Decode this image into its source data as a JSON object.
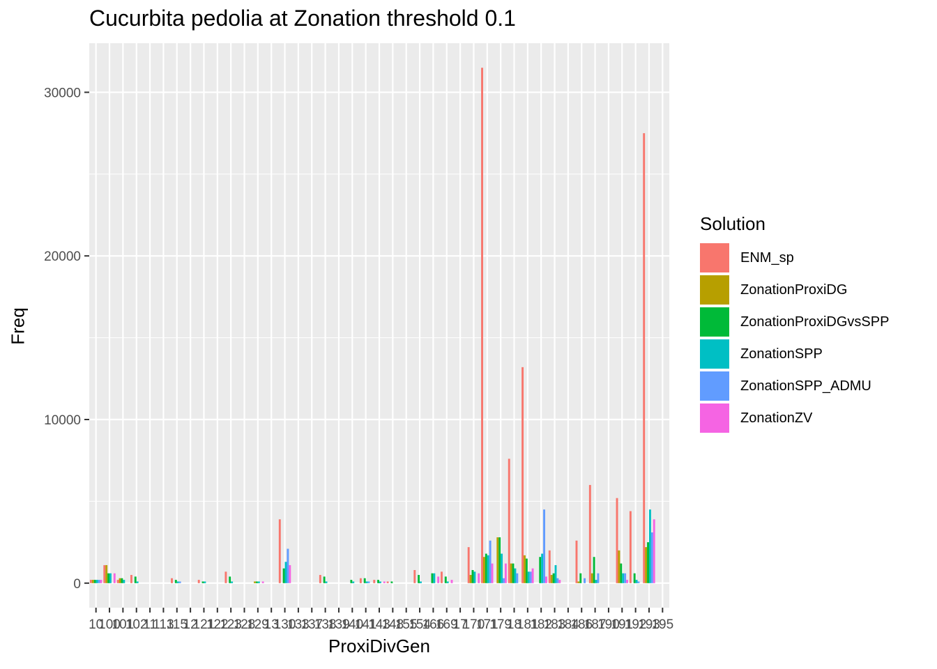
{
  "chart_data": {
    "type": "bar",
    "title": "Cucurbita pedolia at Zonation threshold 0.1",
    "xlabel": "ProxiDivGen",
    "ylabel": "Freq",
    "ylim": [
      -1500,
      33000
    ],
    "yticks": [
      0,
      10000,
      20000,
      30000
    ],
    "grid": true,
    "legend_position": "right",
    "legend_title": "Solution",
    "categories": [
      "10",
      "100",
      "101",
      "102",
      "11",
      "113",
      "115",
      "12",
      "121",
      "122",
      "123",
      "128",
      "129",
      "13",
      "130",
      "133",
      "137",
      "138",
      "139",
      "140",
      "141",
      "143",
      "148",
      "155",
      "154",
      "166",
      "169",
      "17",
      "170",
      "171",
      "179",
      "18",
      "181",
      "182",
      "183",
      "184",
      "186",
      "187",
      "190",
      "191",
      "192",
      "193",
      "195"
    ],
    "series": [
      {
        "name": "ENM_sp",
        "color": "#F8766D",
        "values": [
          200,
          1100,
          200,
          500,
          0,
          0,
          300,
          0,
          200,
          0,
          700,
          0,
          0,
          0,
          3900,
          0,
          0,
          500,
          0,
          0,
          300,
          200,
          100,
          0,
          800,
          0,
          700,
          0,
          2200,
          31500,
          0,
          7600,
          13200,
          0,
          2000,
          0,
          2600,
          6000,
          0,
          5200,
          4400,
          27500,
          0
        ]
      },
      {
        "name": "ZonationProxiDG",
        "color": "#B79F00",
        "values": [
          200,
          1100,
          300,
          0,
          0,
          0,
          0,
          0,
          0,
          0,
          0,
          0,
          100,
          0,
          0,
          0,
          0,
          0,
          0,
          0,
          0,
          0,
          0,
          0,
          0,
          0,
          0,
          0,
          500,
          1600,
          2800,
          1200,
          1700,
          0,
          500,
          0,
          100,
          600,
          0,
          2000,
          0,
          2200,
          0
        ]
      },
      {
        "name": "ZonationProxiDGvsSPP",
        "color": "#00BA38",
        "values": [
          200,
          600,
          300,
          400,
          0,
          0,
          200,
          0,
          100,
          0,
          400,
          0,
          100,
          0,
          900,
          0,
          0,
          400,
          0,
          200,
          300,
          200,
          100,
          0,
          500,
          600,
          400,
          0,
          800,
          1800,
          2800,
          1200,
          1500,
          1600,
          600,
          0,
          600,
          1600,
          0,
          1200,
          600,
          2500,
          0
        ]
      },
      {
        "name": "ZonationSPP",
        "color": "#00BFC4",
        "values": [
          200,
          600,
          200,
          100,
          0,
          0,
          100,
          0,
          100,
          0,
          100,
          0,
          100,
          0,
          1300,
          0,
          0,
          100,
          0,
          100,
          100,
          100,
          0,
          0,
          100,
          600,
          100,
          0,
          700,
          1700,
          1800,
          900,
          700,
          1800,
          1100,
          0,
          0,
          200,
          0,
          600,
          200,
          4500,
          0
        ]
      },
      {
        "name": "ZonationSPP_ADMU",
        "color": "#619CFF",
        "values": [
          200,
          0,
          0,
          0,
          0,
          0,
          100,
          0,
          0,
          0,
          0,
          0,
          0,
          0,
          2100,
          0,
          0,
          0,
          0,
          0,
          100,
          0,
          0,
          0,
          0,
          0,
          0,
          0,
          0,
          2600,
          300,
          600,
          700,
          4500,
          300,
          0,
          300,
          600,
          0,
          600,
          100,
          3100,
          0
        ]
      },
      {
        "name": "ZonationZV",
        "color": "#F564E3",
        "values": [
          200,
          600,
          0,
          0,
          0,
          0,
          0,
          0,
          0,
          0,
          0,
          0,
          100,
          0,
          1100,
          0,
          0,
          0,
          0,
          0,
          0,
          100,
          0,
          0,
          0,
          400,
          200,
          0,
          600,
          1200,
          1200,
          0,
          900,
          400,
          200,
          0,
          0,
          0,
          0,
          200,
          0,
          3900,
          0
        ]
      }
    ]
  }
}
